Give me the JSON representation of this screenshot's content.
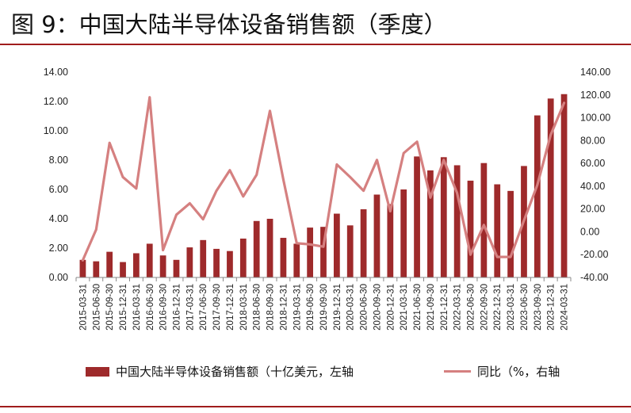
{
  "header": {
    "title": "图 9：中国大陆半导体设备销售额（季度）"
  },
  "chart_data": {
    "type": "bar",
    "categories": [
      "2015-03-31",
      "2015-06-30",
      "2015-09-30",
      "2015-12-31",
      "2016-03-31",
      "2016-06-30",
      "2016-09-30",
      "2016-12-31",
      "2017-03-31",
      "2017-06-30",
      "2017-09-30",
      "2017-12-31",
      "2018-03-31",
      "2018-06-30",
      "2018-09-30",
      "2018-12-31",
      "2019-03-31",
      "2019-06-30",
      "2019-09-30",
      "2019-12-31",
      "2020-03-31",
      "2020-06-30",
      "2020-09-30",
      "2020-12-31",
      "2021-03-31",
      "2021-06-30",
      "2021-09-30",
      "2021-12-31",
      "2022-03-31",
      "2022-06-30",
      "2022-09-30",
      "2022-12-31",
      "2023-03-31",
      "2023-06-30",
      "2023-09-30",
      "2023-12-31",
      "2024-03-31"
    ],
    "series": [
      {
        "name": "中国大陆半导体设备销售额（十亿美元，左轴",
        "type": "bar",
        "axis": "left",
        "color": "#9e2a2b",
        "values": [
          1.2,
          1.1,
          1.75,
          1.05,
          1.65,
          2.3,
          1.5,
          1.2,
          2.05,
          2.55,
          1.95,
          1.8,
          2.65,
          3.85,
          4.0,
          2.7,
          2.3,
          3.4,
          3.45,
          4.35,
          3.55,
          4.65,
          5.65,
          5.0,
          6.0,
          8.25,
          7.3,
          8.2,
          7.65,
          6.6,
          7.8,
          6.35,
          5.9,
          7.6,
          11.05,
          12.2,
          12.5
        ]
      },
      {
        "name": "同比（%，右轴",
        "type": "line",
        "axis": "right",
        "color": "#d58080",
        "values": [
          -25,
          2,
          78,
          48,
          38,
          118,
          -16,
          15,
          25,
          11,
          36,
          54,
          31,
          50,
          106,
          46,
          -10,
          -11,
          -13,
          59,
          48,
          36,
          63,
          18,
          69,
          79,
          30,
          63,
          34,
          -20,
          6,
          -22,
          -22,
          10,
          41,
          85,
          113
        ]
      }
    ],
    "y_left": {
      "min": 0,
      "max": 14,
      "step": 2,
      "tick_labels": [
        "0.00",
        "2.00",
        "4.00",
        "6.00",
        "8.00",
        "10.00",
        "12.00",
        "14.00"
      ]
    },
    "y_right": {
      "min": -40,
      "max": 140,
      "step": 20,
      "tick_labels": [
        "-40.00",
        "-20.00",
        "0.00",
        "20.00",
        "40.00",
        "60.00",
        "80.00",
        "100.00",
        "120.00",
        "140.00"
      ]
    },
    "legend_position": "bottom",
    "grid": false
  }
}
